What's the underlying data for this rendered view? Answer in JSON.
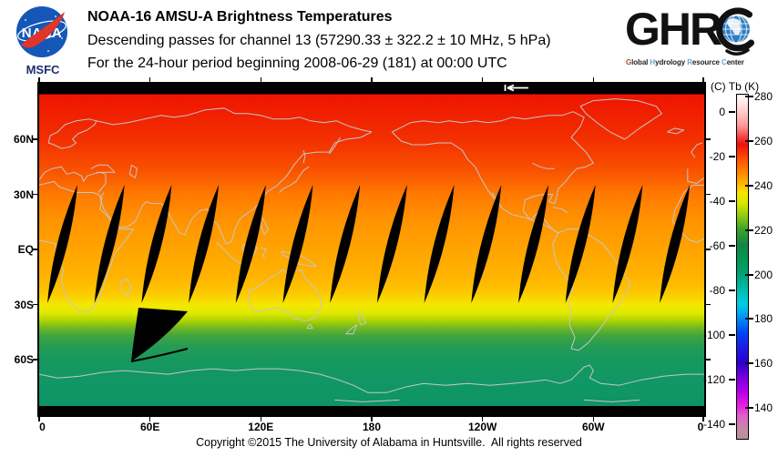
{
  "header": {
    "nasa": {
      "insignia_text": "NASA",
      "center_label": "MSFC"
    },
    "title": "NOAA-16 AMSU-A Brightness Temperatures",
    "subtitle": "Descending passes for channel 13 (57290.33 ± 322.2 ± 10 MHz, 5 hPa)",
    "period_line": "For the 24-hour period beginning 2008-06-29 (181) at 00:00 UTC",
    "ghrc": {
      "letters": "GHR",
      "words": [
        {
          "initial": "G",
          "rest": "lobal",
          "color": "#a34a3a"
        },
        {
          "initial": "H",
          "rest": "ydrology",
          "color": "#6aa3cc"
        },
        {
          "initial": "R",
          "rest": "esource",
          "color": "#6aa3cc"
        },
        {
          "initial": "C",
          "rest": "enter",
          "color": "#6aa3cc"
        }
      ]
    }
  },
  "map": {
    "x_tick_labels": [
      "0",
      "60E",
      "120E",
      "180",
      "120W",
      "60W",
      "0"
    ],
    "y_tick_labels": [
      "60N",
      "30N",
      "EQ",
      "30S",
      "60S"
    ],
    "coastline_color": "#c6c6c6",
    "no_data_color": "#000000",
    "start_marker": "white left-pointing arrow in top no-data band near 170E"
  },
  "colorbar": {
    "header": "(C) Tb (K)",
    "kelvin_ticks": [
      "280",
      "260",
      "240",
      "220",
      "200",
      "180",
      "160",
      "140"
    ],
    "celsius_ticks": [
      "0",
      "-20",
      "-40",
      "-60",
      "-80",
      "-100",
      "-120",
      "-140"
    ]
  },
  "footer": {
    "copyright": "Copyright ©2015 The University of Alabama in Huntsville.  All rights reserved"
  },
  "chart_data": {
    "type": "heatmap",
    "title": "NOAA-16 AMSU-A Brightness Temperatures",
    "subtitle": "Descending passes for channel 13 (57290.33 ± 322.2 ± 10 MHz, 5 hPa)",
    "period": "24-hour period beginning 2008-06-29 (181) at 00:00 UTC",
    "satellite": "NOAA-16",
    "instrument": "AMSU-A",
    "channel": 13,
    "x_axis": {
      "label": "longitude",
      "ticks": [
        "0",
        "60E",
        "120E",
        "180",
        "120W",
        "60W",
        "0"
      ],
      "range_deg": [
        0,
        360
      ]
    },
    "y_axis": {
      "label": "latitude",
      "ticks": [
        "60N",
        "30N",
        "EQ",
        "30S",
        "60S"
      ],
      "range_deg": [
        -90,
        90
      ]
    },
    "colorbar": {
      "label": "(C) Tb (K)",
      "kelvin_ticks": [
        280,
        260,
        240,
        220,
        200,
        180,
        160,
        140
      ],
      "celsius_ticks": [
        0,
        -20,
        -40,
        -60,
        -80,
        -100,
        -120,
        -140
      ],
      "scale_stops": [
        {
          "tb_k": 280,
          "color": "#ffffff"
        },
        {
          "tb_k": 270,
          "color": "#ff8888"
        },
        {
          "tb_k": 260,
          "color": "#ee1010"
        },
        {
          "tb_k": 250,
          "color": "#ff6000"
        },
        {
          "tb_k": 240,
          "color": "#ffc000"
        },
        {
          "tb_k": 235,
          "color": "#f0e800"
        },
        {
          "tb_k": 225,
          "color": "#70bc1c"
        },
        {
          "tb_k": 215,
          "color": "#1e8c3c"
        },
        {
          "tb_k": 200,
          "color": "#009858"
        },
        {
          "tb_k": 190,
          "color": "#00b4a0"
        },
        {
          "tb_k": 180,
          "color": "#00a0f0"
        },
        {
          "tb_k": 170,
          "color": "#0030f0"
        },
        {
          "tb_k": 160,
          "color": "#2c00cc"
        },
        {
          "tb_k": 150,
          "color": "#8800e0"
        },
        {
          "tb_k": 140,
          "color": "#e822e0"
        },
        {
          "tb_k": 130,
          "color": "#c48ca4"
        }
      ]
    },
    "field_latitude_profile": [
      {
        "lat": 85,
        "tb_k": 261
      },
      {
        "lat": 60,
        "tb_k": 253
      },
      {
        "lat": 30,
        "tb_k": 247
      },
      {
        "lat": 0,
        "tb_k": 244
      },
      {
        "lat": -20,
        "tb_k": 241
      },
      {
        "lat": -32,
        "tb_k": 236
      },
      {
        "lat": -45,
        "tb_k": 227
      },
      {
        "lat": -60,
        "tb_k": 213
      },
      {
        "lat": -75,
        "tb_k": 205
      }
    ],
    "no_data": {
      "polar_bands": "solid black bands poleward of about 84N and 85S",
      "pass_gaps": {
        "count": 14,
        "shape": "slanted lens-shaped slivers between descending passes",
        "lat_extent": [
          -32,
          25
        ],
        "note": "one gap widens into a large black wedge reaching about 68S near 50-80E"
      }
    }
  }
}
